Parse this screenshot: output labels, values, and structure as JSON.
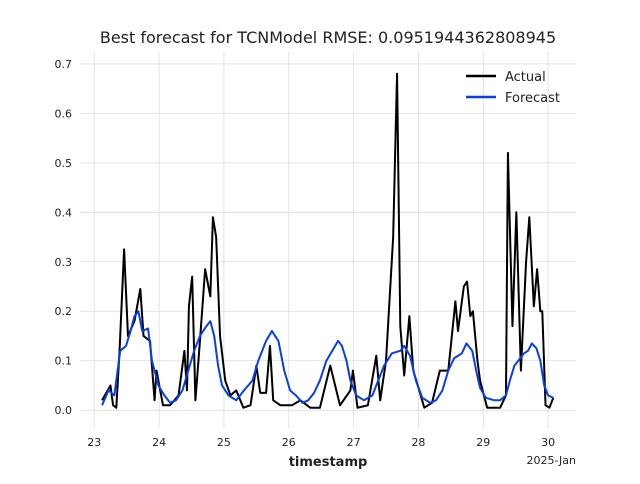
{
  "chart_data": {
    "type": "line",
    "title": "Best forecast for TCNModel RMSE: 0.0951944362808945",
    "x_label": "timestamp",
    "x_offset_label": "2025-Jan",
    "xlim": [
      22.78,
      30.43
    ],
    "ylim": [
      -0.036,
      0.724
    ],
    "xticks": [
      23,
      24,
      25,
      26,
      27,
      28,
      29,
      30
    ],
    "yticks": [
      {
        "value": 0,
        "label": "0.0"
      },
      0.1,
      0.2,
      0.3,
      0.4,
      0.5,
      0.6,
      0.7
    ],
    "grid": true,
    "legend": "upper right",
    "series": [
      {
        "name": "Actual",
        "color": "#000000",
        "x": [
          23.12,
          23.25,
          23.29,
          23.34,
          23.39,
          23.46,
          23.52,
          23.62,
          23.71,
          23.76,
          23.86,
          23.93,
          23.96,
          24.06,
          24.17,
          24.3,
          24.39,
          24.43,
          24.46,
          24.51,
          24.56,
          24.63,
          24.71,
          24.79,
          24.83,
          24.88,
          24.94,
          25.02,
          25.1,
          25.19,
          25.3,
          25.41,
          25.5,
          25.56,
          25.65,
          25.71,
          25.76,
          25.87,
          26.05,
          26.18,
          26.33,
          26.48,
          26.64,
          26.79,
          26.95,
          26.99,
          27.06,
          27.22,
          27.35,
          27.41,
          27.5,
          27.61,
          27.67,
          27.72,
          27.78,
          27.86,
          27.92,
          27.99,
          28.09,
          28.21,
          28.33,
          28.46,
          28.57,
          28.61,
          28.7,
          28.75,
          28.8,
          28.84,
          28.91,
          28.95,
          29.06,
          29.26,
          29.35,
          29.38,
          29.45,
          29.51,
          29.58,
          29.66,
          29.71,
          29.78,
          29.83,
          29.88,
          29.91,
          29.96,
          30.02,
          30.08
        ],
        "values": [
          0.02,
          0.05,
          0.01,
          0.005,
          0.12,
          0.325,
          0.15,
          0.18,
          0.245,
          0.15,
          0.14,
          0.02,
          0.08,
          0.01,
          0.01,
          0.03,
          0.12,
          0.04,
          0.21,
          0.27,
          0.02,
          0.14,
          0.285,
          0.23,
          0.39,
          0.35,
          0.15,
          0.06,
          0.03,
          0.04,
          0.005,
          0.01,
          0.09,
          0.035,
          0.035,
          0.13,
          0.02,
          0.01,
          0.01,
          0.02,
          0.005,
          0.005,
          0.09,
          0.01,
          0.04,
          0.08,
          0.005,
          0.01,
          0.11,
          0.02,
          0.1,
          0.35,
          0.68,
          0.17,
          0.07,
          0.19,
          0.08,
          0.05,
          0.005,
          0.015,
          0.08,
          0.08,
          0.22,
          0.16,
          0.25,
          0.26,
          0.19,
          0.2,
          0.1,
          0.06,
          0.005,
          0.005,
          0.03,
          0.52,
          0.17,
          0.4,
          0.08,
          0.3,
          0.39,
          0.21,
          0.285,
          0.2,
          0.2,
          0.01,
          0.005,
          0.025
        ]
      },
      {
        "name": "Forecast",
        "color": "#0a3ee8",
        "x": [
          23.12,
          23.22,
          23.31,
          23.4,
          23.49,
          23.56,
          23.62,
          23.68,
          23.74,
          23.83,
          23.89,
          23.99,
          24.08,
          24.17,
          24.26,
          24.36,
          24.45,
          24.54,
          24.63,
          24.73,
          24.79,
          24.85,
          24.91,
          24.97,
          25.07,
          25.19,
          25.31,
          25.44,
          25.53,
          25.65,
          25.74,
          25.84,
          25.93,
          26.02,
          26.11,
          26.21,
          26.3,
          26.39,
          26.48,
          26.58,
          26.67,
          26.76,
          26.82,
          26.89,
          26.95,
          27.04,
          27.16,
          27.29,
          27.38,
          27.47,
          27.59,
          27.72,
          27.78,
          27.87,
          27.96,
          28.06,
          28.18,
          28.27,
          28.37,
          28.46,
          28.55,
          28.67,
          28.74,
          28.83,
          28.89,
          28.95,
          29.04,
          29.17,
          29.26,
          29.35,
          29.41,
          29.48,
          29.54,
          29.63,
          29.69,
          29.75,
          29.82,
          29.88,
          29.94,
          30.0,
          30.08
        ],
        "values": [
          0.01,
          0.04,
          0.03,
          0.12,
          0.13,
          0.16,
          0.19,
          0.2,
          0.16,
          0.165,
          0.1,
          0.05,
          0.03,
          0.015,
          0.02,
          0.04,
          0.08,
          0.12,
          0.15,
          0.17,
          0.18,
          0.15,
          0.09,
          0.05,
          0.03,
          0.02,
          0.04,
          0.06,
          0.1,
          0.14,
          0.16,
          0.14,
          0.08,
          0.04,
          0.03,
          0.015,
          0.02,
          0.035,
          0.06,
          0.1,
          0.12,
          0.14,
          0.13,
          0.1,
          0.06,
          0.03,
          0.02,
          0.03,
          0.06,
          0.09,
          0.115,
          0.12,
          0.13,
          0.11,
          0.06,
          0.025,
          0.015,
          0.02,
          0.04,
          0.08,
          0.105,
          0.115,
          0.135,
          0.12,
          0.08,
          0.045,
          0.025,
          0.02,
          0.02,
          0.03,
          0.06,
          0.09,
          0.1,
          0.115,
          0.12,
          0.135,
          0.125,
          0.1,
          0.05,
          0.03,
          0.025
        ]
      }
    ]
  }
}
